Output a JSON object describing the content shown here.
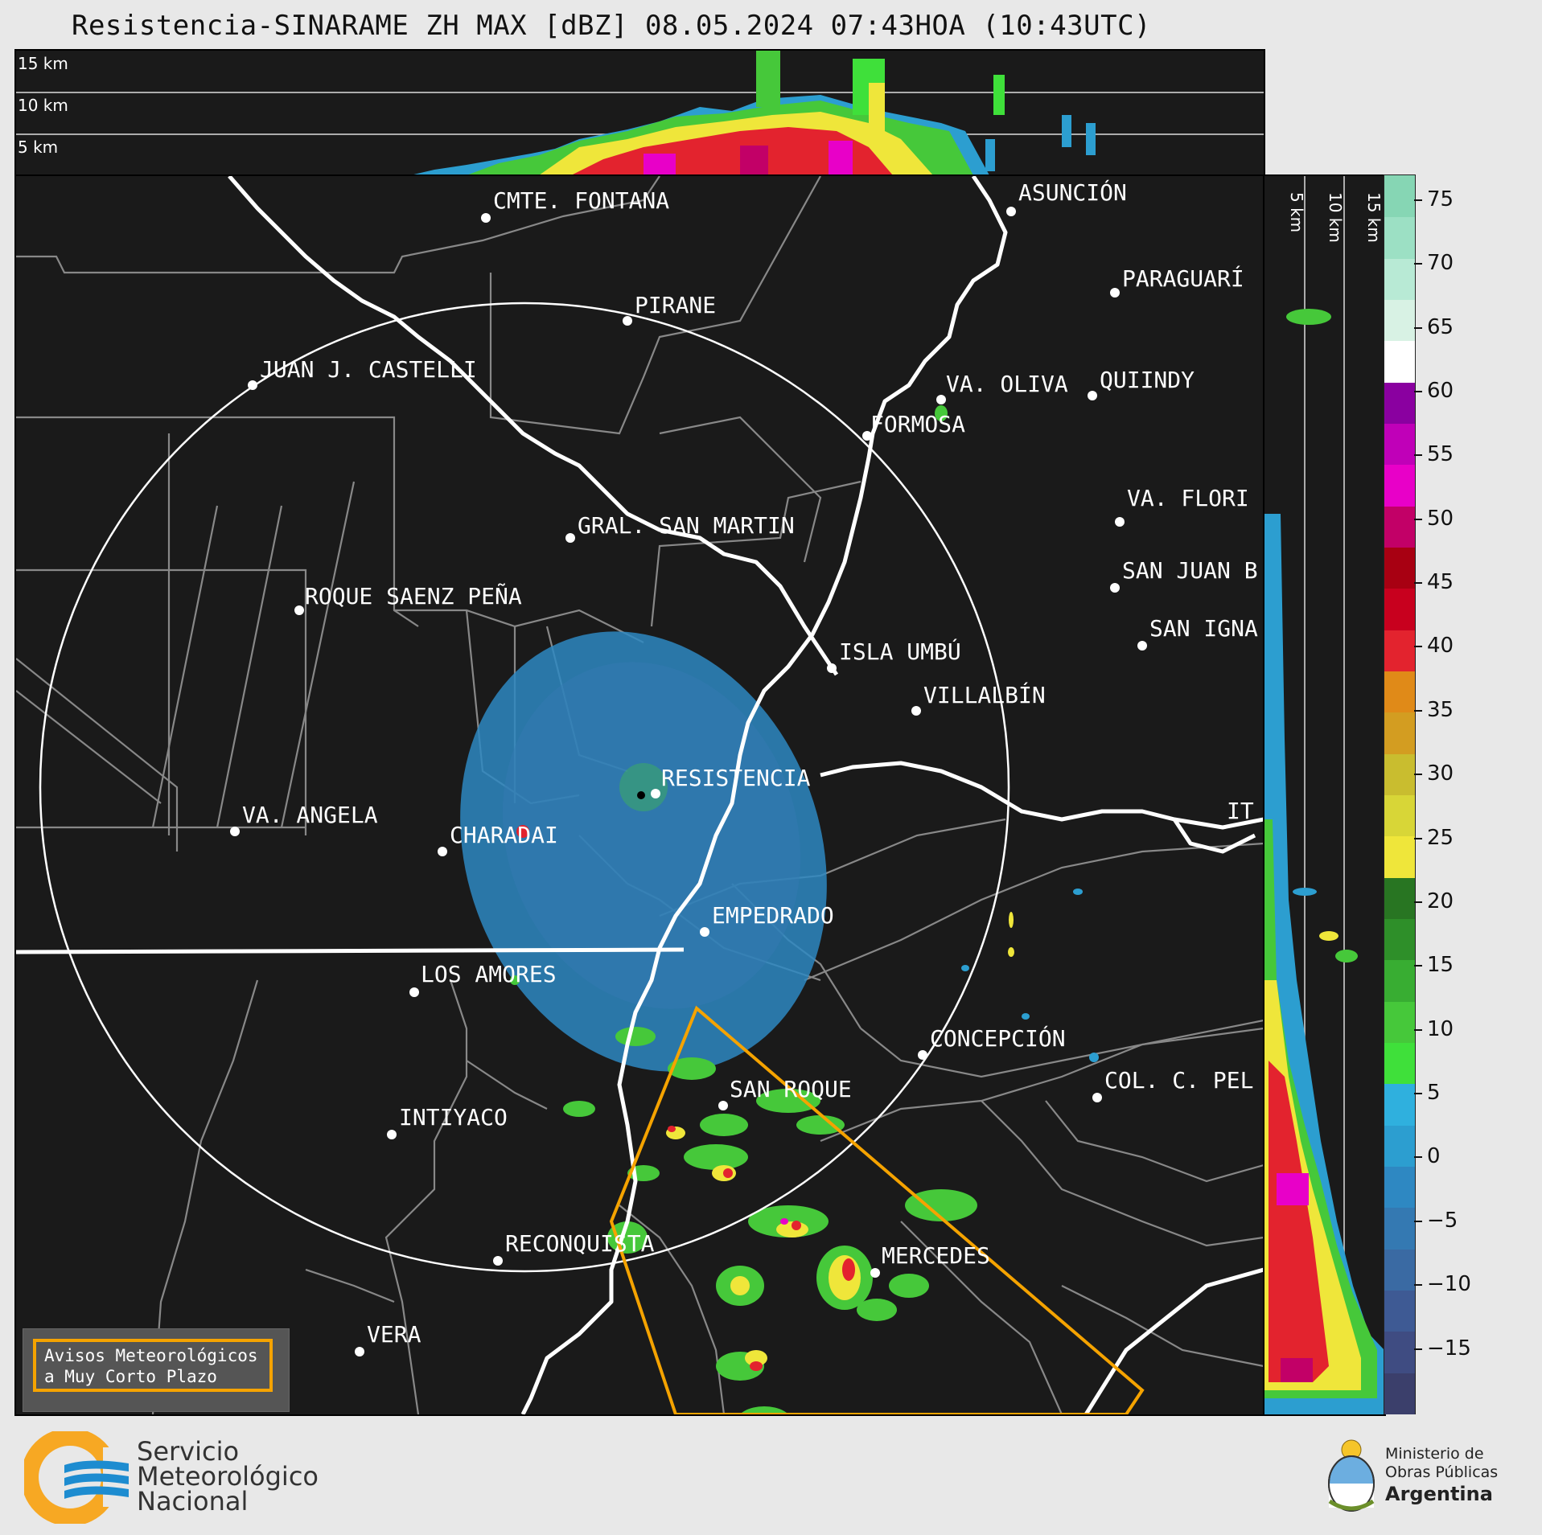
{
  "title": "Resistencia-SINARAME ZH MAX [dBZ] 08.05.2024 07:43HOA (10:43UTC)",
  "height_labels": {
    "top": [
      "15 km",
      "10 km",
      "5 km"
    ],
    "right": [
      "5 km",
      "10 km",
      "15 km"
    ]
  },
  "cities": [
    {
      "name": "CMTE. FONTANA"
    },
    {
      "name": "ASUNCIÓN"
    },
    {
      "name": "PARAGUARÍ"
    },
    {
      "name": "PIRANE"
    },
    {
      "name": "JUAN J. CASTELLI"
    },
    {
      "name": "VA. OLIVA"
    },
    {
      "name": "QUIINDY"
    },
    {
      "name": "FORMOSA"
    },
    {
      "name": "VA. FLORI"
    },
    {
      "name": "GRAL. SAN MARTIN"
    },
    {
      "name": "SAN JUAN B"
    },
    {
      "name": "ROQUE SAENZ PEÑA"
    },
    {
      "name": "SAN IGNA"
    },
    {
      "name": "ISLA UMBÚ"
    },
    {
      "name": "VILLALBÍN"
    },
    {
      "name": "RESISTENCIA"
    },
    {
      "name": "VA. ANGELA"
    },
    {
      "name": "CHARADAI"
    },
    {
      "name": "IT"
    },
    {
      "name": "EMPEDRADO"
    },
    {
      "name": "LOS AMORES"
    },
    {
      "name": "CONCEPCIÓN"
    },
    {
      "name": "SAN ROQUE"
    },
    {
      "name": "COL. C. PEL"
    },
    {
      "name": "INTIYACO"
    },
    {
      "name": "RECONQUISTA"
    },
    {
      "name": "MERCEDES"
    },
    {
      "name": "VERA"
    }
  ],
  "colorbar": {
    "ticks": [
      "75",
      "70",
      "65",
      "60",
      "55",
      "50",
      "45",
      "40",
      "35",
      "30",
      "25",
      "20",
      "15",
      "10",
      "5",
      "0",
      "−5",
      "−10",
      "−15"
    ],
    "range": [
      -20,
      77
    ],
    "colors": [
      "#3b3f6b",
      "#3f4c82",
      "#3e5a94",
      "#3a6aa3",
      "#3479b2",
      "#2e88c2",
      "#2c9ed0",
      "#2fb0de",
      "#3fe03a",
      "#46c83a",
      "#38ad32",
      "#2e8f29",
      "#287522",
      "#efe63a",
      "#d8d637",
      "#c9bd2f",
      "#d39d21",
      "#e08a18",
      "#e3232e",
      "#c8001e",
      "#a80012",
      "#c20067",
      "#e800c8",
      "#c000b8",
      "#8a00a0",
      "#ffffff",
      "#d8f2e4",
      "#b8ead5",
      "#9ce0c4",
      "#86d6b4"
    ]
  },
  "warning_box": {
    "line1": "Avisos Meteorológicos",
    "line2": "a Muy Corto Plazo"
  },
  "smn": {
    "line1": "Servicio",
    "line2": "Meteorológico",
    "line3": "Nacional"
  },
  "ministry": {
    "line1": "Ministerio de",
    "line2": "Obras Públicas",
    "line3": "Argentina"
  },
  "palette": {
    "background": "#1a1a1a",
    "boundary": "#888888",
    "river": "#ffffff",
    "warning": "#f5a300"
  }
}
